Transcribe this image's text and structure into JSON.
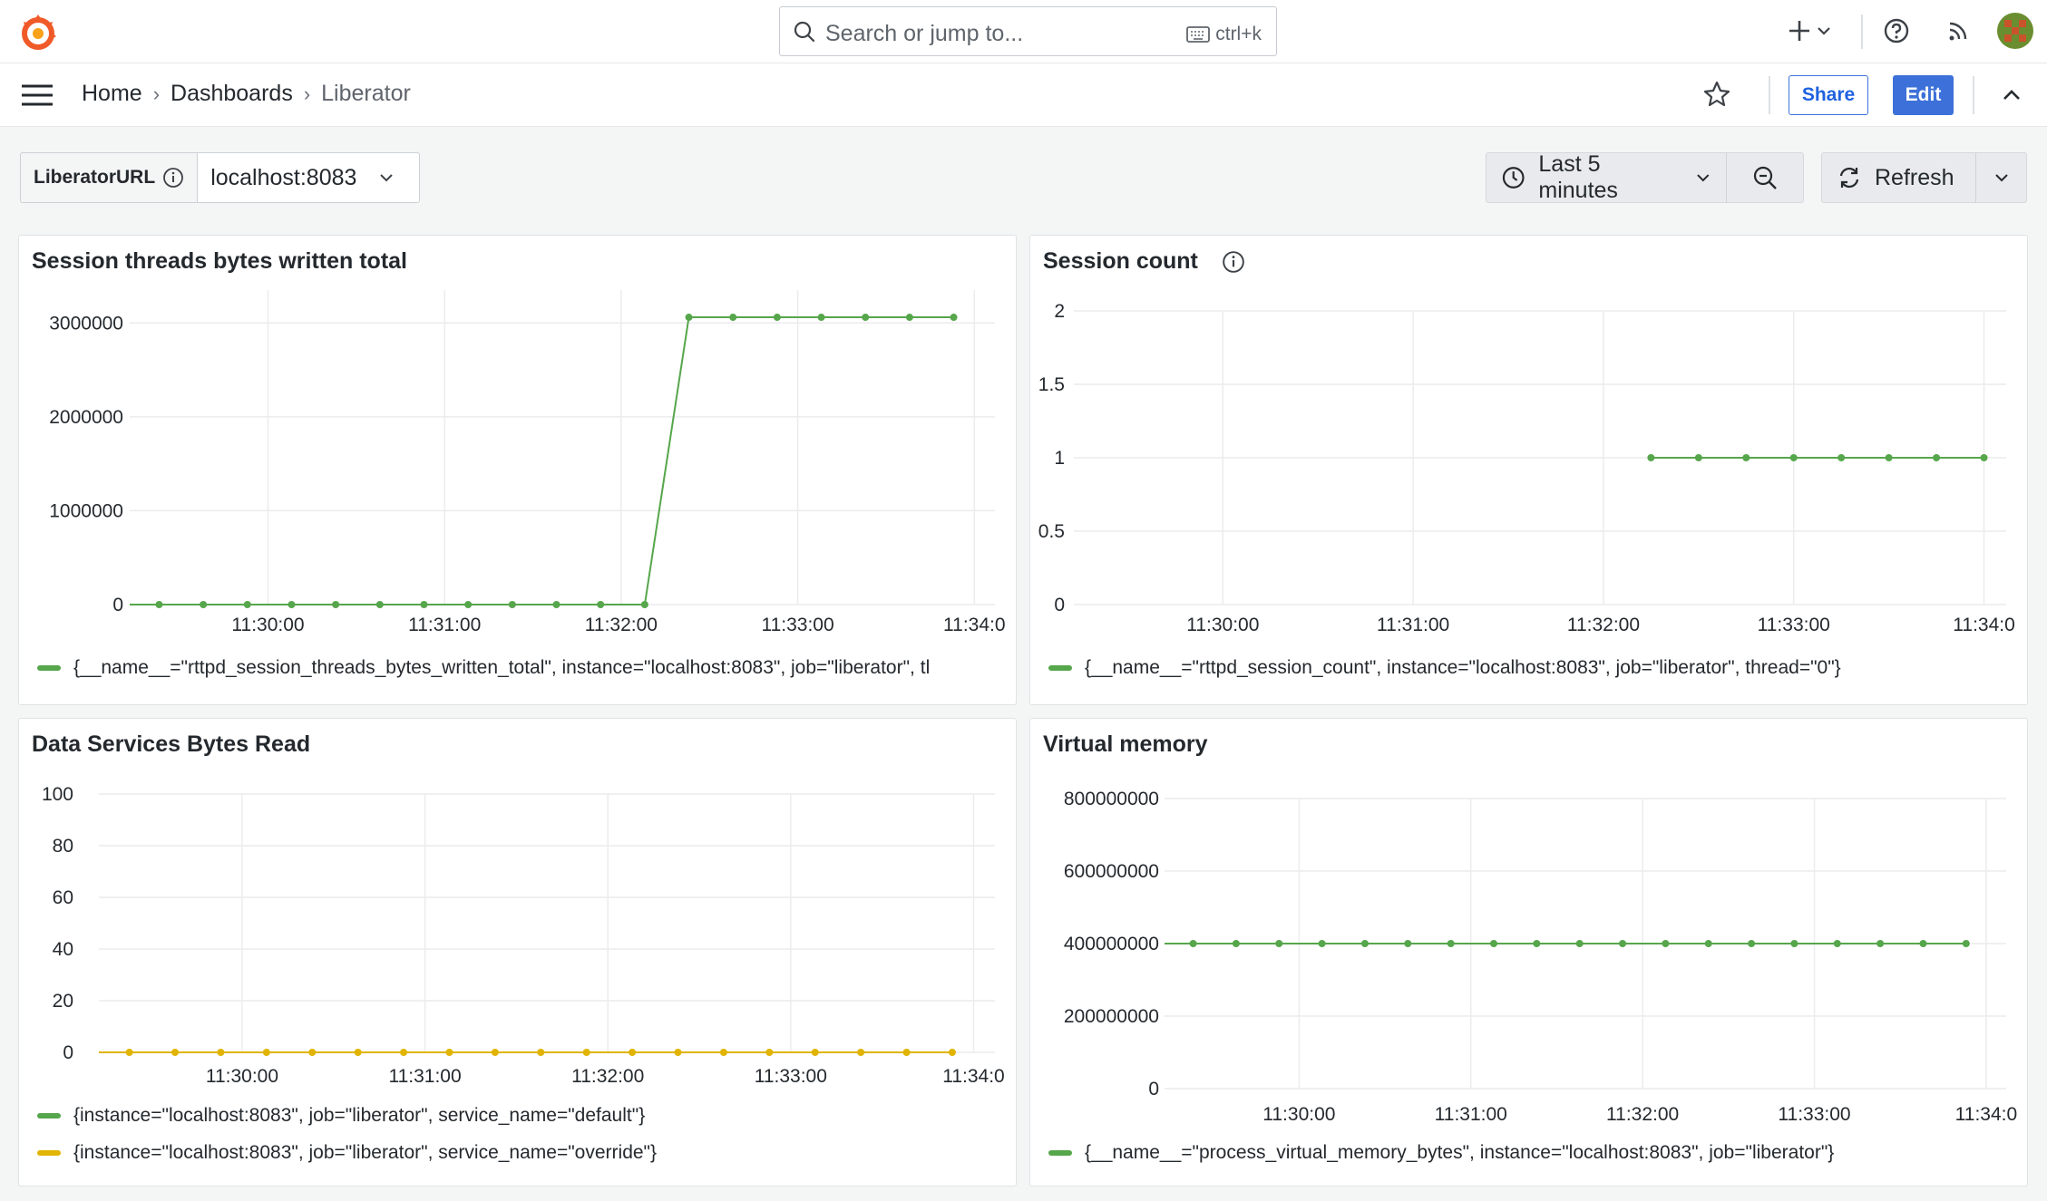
{
  "topbar": {
    "search_placeholder": "Search or jump to...",
    "search_shortcut": "ctrl+k",
    "icons": [
      "grafana-logo-icon",
      "search-icon",
      "keyboard-icon",
      "plus-icon",
      "chevron-down-icon",
      "help-icon",
      "rss-icon",
      "avatar"
    ]
  },
  "breadcrumb": {
    "items": [
      "Home",
      "Dashboards",
      "Liberator"
    ],
    "separator": "›"
  },
  "toolbar": {
    "share_label": "Share",
    "edit_label": "Edit"
  },
  "variables": {
    "label": "LiberatorURL",
    "value": "localhost:8083"
  },
  "time_picker": {
    "range_label": "Last 5 minutes",
    "refresh_label": "Refresh"
  },
  "colors": {
    "green": "#56a64b",
    "yellow": "#e0b400",
    "accent": "#3d71d9"
  },
  "panels": [
    {
      "title": "Session threads bytes written total",
      "info": false,
      "legend": [
        "{__name__=\"rttpd_session_threads_bytes_written_total\", instance=\"localhost:8083\", job=\"liberator\", tl"
      ],
      "chart_data": {
        "type": "line",
        "x_ticks": [
          "11:30:00",
          "11:31:00",
          "11:32:00",
          "11:33:00",
          "11:34:0"
        ],
        "y_ticks": [
          "0",
          "1000000",
          "2000000",
          "3000000"
        ],
        "ylim": [
          0,
          3350000
        ],
        "xlim": [
          "11:29:13",
          "11:34:07"
        ],
        "series": [
          {
            "color": "#56a64b",
            "x": [
              "11:29:23",
              "11:29:38",
              "11:29:53",
              "11:30:08",
              "11:30:23",
              "11:30:38",
              "11:30:53",
              "11:31:08",
              "11:31:23",
              "11:31:38",
              "11:31:53",
              "11:32:08",
              "11:32:23",
              "11:32:38",
              "11:32:53",
              "11:33:08",
              "11:33:23",
              "11:33:38",
              "11:33:53"
            ],
            "y": [
              0,
              0,
              0,
              0,
              0,
              0,
              0,
              0,
              0,
              0,
              0,
              0,
              3060000,
              3060000,
              3060000,
              3060000,
              3060000,
              3060000,
              3060000
            ]
          }
        ]
      }
    },
    {
      "title": "Session count",
      "info": true,
      "legend": [
        "{__name__=\"rttpd_session_count\", instance=\"localhost:8083\", job=\"liberator\", thread=\"0\"}"
      ],
      "chart_data": {
        "type": "line",
        "x_ticks": [
          "11:30:00",
          "11:31:00",
          "11:32:00",
          "11:33:00",
          "11:34:0"
        ],
        "y_ticks": [
          "0",
          "0.5",
          "1",
          "1.5",
          "2"
        ],
        "ylim": [
          0,
          2
        ],
        "xlim": [
          "11:29:13",
          "11:34:07"
        ],
        "series": [
          {
            "color": "#56a64b",
            "x": [
              "11:32:15",
              "11:32:30",
              "11:32:45",
              "11:33:00",
              "11:33:15",
              "11:33:30",
              "11:33:45",
              "11:34:00"
            ],
            "y": [
              1,
              1,
              1,
              1,
              1,
              1,
              1,
              1
            ]
          }
        ]
      }
    },
    {
      "title": "Data Services Bytes Read",
      "info": false,
      "legend": [
        "{instance=\"localhost:8083\", job=\"liberator\", service_name=\"default\"}",
        "{instance=\"localhost:8083\", job=\"liberator\", service_name=\"override\"}"
      ],
      "legend_colors": [
        "#56a64b",
        "#e0b400"
      ],
      "chart_data": {
        "type": "line",
        "x_ticks": [
          "11:30:00",
          "11:31:00",
          "11:32:00",
          "11:33:00",
          "11:34:0"
        ],
        "y_ticks": [
          "0",
          "20",
          "40",
          "60",
          "80",
          "100"
        ],
        "ylim": [
          0,
          100
        ],
        "xlim": [
          "11:29:13",
          "11:34:07"
        ],
        "series": [
          {
            "name": "{instance=\"localhost:8083\", job=\"liberator\", service_name=\"override\"}",
            "color": "#e0b400",
            "x": [
              "11:29:23",
              "11:29:38",
              "11:29:53",
              "11:30:08",
              "11:30:23",
              "11:30:38",
              "11:30:53",
              "11:31:08",
              "11:31:23",
              "11:31:38",
              "11:31:53",
              "11:32:08",
              "11:32:23",
              "11:32:38",
              "11:32:53",
              "11:33:08",
              "11:33:23",
              "11:33:38",
              "11:33:53"
            ],
            "y": [
              0,
              0,
              0,
              0,
              0,
              0,
              0,
              0,
              0,
              0,
              0,
              0,
              0,
              0,
              0,
              0,
              0,
              0,
              0
            ]
          }
        ]
      }
    },
    {
      "title": "Virtual memory",
      "info": false,
      "legend": [
        "{__name__=\"process_virtual_memory_bytes\", instance=\"localhost:8083\", job=\"liberator\"}"
      ],
      "chart_data": {
        "type": "line",
        "x_ticks": [
          "11:30:00",
          "11:31:00",
          "11:32:00",
          "11:33:00",
          "11:34:0"
        ],
        "y_ticks": [
          "0",
          "200000000",
          "400000000",
          "600000000",
          "800000000"
        ],
        "ylim": [
          0,
          800000000
        ],
        "xlim": [
          "11:29:13",
          "11:34:07"
        ],
        "series": [
          {
            "color": "#56a64b",
            "x": [
              "11:29:23",
              "11:29:38",
              "11:29:53",
              "11:30:08",
              "11:30:23",
              "11:30:38",
              "11:30:53",
              "11:31:08",
              "11:31:23",
              "11:31:38",
              "11:31:53",
              "11:32:08",
              "11:32:23",
              "11:32:38",
              "11:32:53",
              "11:33:08",
              "11:33:23",
              "11:33:38",
              "11:33:53"
            ],
            "y": [
              400000000,
              400000000,
              400000000,
              400000000,
              400000000,
              400000000,
              400000000,
              400000000,
              400000000,
              400000000,
              400000000,
              400000000,
              400000000,
              400000000,
              400000000,
              400000000,
              400000000,
              400000000,
              400000000
            ]
          }
        ]
      }
    }
  ]
}
